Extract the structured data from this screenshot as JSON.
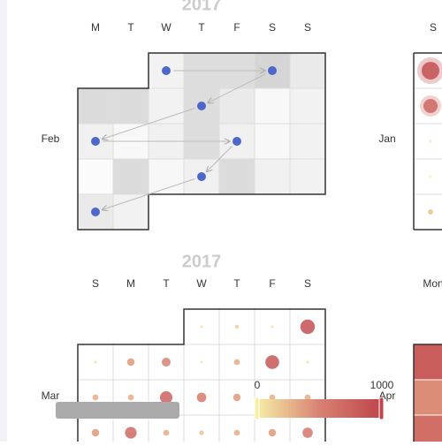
{
  "calendars": [
    {
      "title": "2017",
      "day_labels": [
        "M",
        "T",
        "W",
        "T",
        "F",
        "S",
        "S"
      ],
      "month": "Feb",
      "values": [
        150,
        400,
        400,
        500,
        250,
        420,
        420,
        150,
        400,
        250,
        80,
        150,
        180,
        80,
        180,
        400,
        180,
        80,
        150,
        50,
        420,
        100,
        180,
        420,
        180,
        150,
        250,
        150
      ],
      "route_days": [
        1,
        4,
        9,
        13,
        17,
        23,
        27
      ]
    },
    {
      "day_labels": [
        "S"
      ],
      "month": "Jan",
      "days": [
        1,
        8,
        15,
        22,
        29
      ],
      "values": [
        900,
        700,
        50,
        30,
        200
      ]
    },
    {
      "title": "2017",
      "day_labels": [
        "S",
        "M",
        "T",
        "W",
        "T",
        "F",
        "S"
      ],
      "month": "Mar",
      "values": [
        60,
        150,
        60,
        900,
        60,
        400,
        500,
        50,
        300,
        850,
        60,
        300,
        300,
        750,
        550,
        400,
        300,
        300,
        400,
        700,
        300,
        200,
        300,
        400,
        600
      ]
    },
    {
      "day_labels": [
        "Mon"
      ],
      "month": "Apr",
      "days": [
        3,
        10,
        17
      ],
      "values": [
        800,
        450,
        650
      ]
    }
  ],
  "visual_map": {
    "min": 0,
    "max": 1000
  }
}
